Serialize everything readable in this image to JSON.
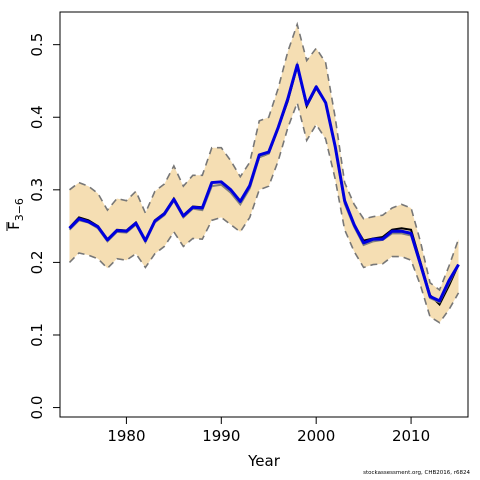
{
  "chart_data": {
    "type": "line",
    "xlabel": "Year",
    "ylabel_main": "F",
    "ylabel_sub": "3−6",
    "xlim": [
      1973,
      2016
    ],
    "ylim": [
      -0.013,
      0.545
    ],
    "x_ticks": [
      1980,
      1990,
      2000,
      2010
    ],
    "x_tick_labels": [
      "1980",
      "1990",
      "2000",
      "2010"
    ],
    "y_ticks": [
      0.0,
      0.1,
      0.2,
      0.3,
      0.4,
      0.5
    ],
    "y_tick_labels": [
      "0.0",
      "0.1",
      "0.2",
      "0.3",
      "0.4",
      "0.5"
    ],
    "colors": {
      "band": "#f5deb3",
      "bounds": "#777777",
      "main_line": "#0000dd",
      "black_line": "#000000",
      "grey_line": "#808080"
    },
    "x": [
      1974,
      1975,
      1976,
      1977,
      1978,
      1979,
      1980,
      1981,
      1982,
      1983,
      1984,
      1985,
      1986,
      1987,
      1988,
      1989,
      1990,
      1991,
      1992,
      1993,
      1994,
      1995,
      1996,
      1997,
      1998,
      1999,
      2000,
      2001,
      2002,
      2003,
      2004,
      2005,
      2006,
      2007,
      2008,
      2009,
      2010,
      2011,
      2012,
      2013,
      2014,
      2015
    ],
    "series": [
      {
        "role": "upper",
        "values": [
          0.3,
          0.31,
          0.305,
          0.295,
          0.272,
          0.288,
          0.285,
          0.298,
          0.268,
          0.298,
          0.308,
          0.333,
          0.305,
          0.32,
          0.32,
          0.358,
          0.358,
          0.34,
          0.318,
          0.338,
          0.395,
          0.4,
          0.44,
          0.49,
          0.528,
          0.478,
          0.495,
          0.475,
          0.4,
          0.31,
          0.28,
          0.26,
          0.263,
          0.265,
          0.275,
          0.28,
          0.275,
          0.228,
          0.172,
          0.162,
          0.195,
          0.232
        ]
      },
      {
        "role": "lower",
        "values": [
          0.2,
          0.213,
          0.21,
          0.205,
          0.192,
          0.205,
          0.203,
          0.212,
          0.193,
          0.212,
          0.222,
          0.242,
          0.222,
          0.233,
          0.232,
          0.258,
          0.262,
          0.252,
          0.242,
          0.262,
          0.3,
          0.305,
          0.34,
          0.385,
          0.42,
          0.368,
          0.39,
          0.37,
          0.315,
          0.245,
          0.215,
          0.193,
          0.197,
          0.198,
          0.208,
          0.208,
          0.203,
          0.168,
          0.125,
          0.117,
          0.135,
          0.158
        ]
      },
      {
        "role": "black",
        "values": [
          0.248,
          0.262,
          0.258,
          0.25,
          0.232,
          0.245,
          0.244,
          0.255,
          0.23,
          0.258,
          0.268,
          0.288,
          0.265,
          0.277,
          0.276,
          0.31,
          0.311,
          0.298,
          0.282,
          0.305,
          0.345,
          0.35,
          0.385,
          0.422,
          0.47,
          0.415,
          0.44,
          0.42,
          0.36,
          0.285,
          0.252,
          0.23,
          0.233,
          0.235,
          0.245,
          0.247,
          0.245,
          0.2,
          0.155,
          0.142,
          0.168,
          0.197
        ]
      },
      {
        "role": "grey",
        "values": [
          0.245,
          0.258,
          0.255,
          0.247,
          0.229,
          0.242,
          0.241,
          0.252,
          0.228,
          0.255,
          0.265,
          0.285,
          0.262,
          0.274,
          0.272,
          0.305,
          0.307,
          0.296,
          0.28,
          0.302,
          0.345,
          0.35,
          0.386,
          0.425,
          0.472,
          0.418,
          0.442,
          0.42,
          0.358,
          0.281,
          0.249,
          0.224,
          0.229,
          0.231,
          0.24,
          0.24,
          0.237,
          0.195,
          0.151,
          0.145,
          0.172,
          0.197
        ]
      },
      {
        "role": "blue",
        "values": [
          0.247,
          0.26,
          0.256,
          0.249,
          0.231,
          0.244,
          0.243,
          0.254,
          0.23,
          0.257,
          0.267,
          0.287,
          0.264,
          0.276,
          0.275,
          0.31,
          0.311,
          0.3,
          0.284,
          0.306,
          0.348,
          0.352,
          0.386,
          0.425,
          0.472,
          0.417,
          0.442,
          0.42,
          0.36,
          0.285,
          0.252,
          0.227,
          0.232,
          0.232,
          0.243,
          0.243,
          0.24,
          0.197,
          0.153,
          0.147,
          0.175,
          0.197
        ]
      }
    ]
  },
  "footnote": "stockassessment.org, CHB2016, r6824"
}
